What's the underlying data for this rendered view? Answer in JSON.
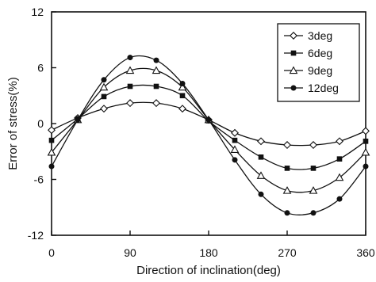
{
  "chart_data": {
    "type": "line",
    "xlabel": "Direction of inclination(deg)",
    "ylabel": "Error of stress(%)",
    "xlim": [
      0,
      360
    ],
    "ylim": [
      -12,
      12
    ],
    "xticks": [
      "0",
      "90",
      "180",
      "270",
      "360"
    ],
    "yticks": [
      "12",
      "6",
      "0",
      "-6",
      "-12"
    ],
    "grid": false,
    "legend_position": "top-right",
    "x": [
      0,
      30,
      60,
      90,
      120,
      150,
      180,
      210,
      240,
      270,
      300,
      330,
      360
    ],
    "series": [
      {
        "name": "3deg",
        "marker": "open-diamond",
        "values": [
          -0.7,
          0.6,
          1.6,
          2.2,
          2.2,
          1.6,
          0.4,
          -1.0,
          -1.9,
          -2.3,
          -2.3,
          -1.9,
          -0.8
        ]
      },
      {
        "name": "6deg",
        "marker": "filled-square",
        "values": [
          -1.8,
          0.5,
          2.9,
          4.0,
          4.0,
          3.0,
          0.3,
          -1.8,
          -3.6,
          -4.8,
          -4.8,
          -3.8,
          -1.9
        ]
      },
      {
        "name": "9deg",
        "marker": "open-triangle",
        "values": [
          -3.1,
          0.4,
          3.9,
          5.7,
          5.7,
          3.9,
          0.4,
          -2.8,
          -5.6,
          -7.2,
          -7.2,
          -5.8,
          -3.1
        ]
      },
      {
        "name": "12deg",
        "marker": "filled-circle",
        "values": [
          -4.6,
          0.4,
          4.7,
          7.1,
          6.8,
          4.3,
          0.4,
          -3.9,
          -7.6,
          -9.6,
          -9.6,
          -8.1,
          -4.6
        ]
      }
    ]
  }
}
